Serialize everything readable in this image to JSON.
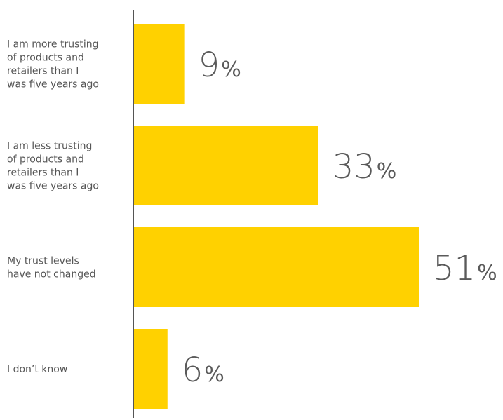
{
  "chart_data": {
    "type": "bar",
    "orientation": "horizontal",
    "categories": [
      [
        "I am more trusting",
        "of products and",
        "retailers than I",
        "was five years ago"
      ],
      [
        "I am less trusting",
        "of products and",
        "retailers than I",
        "was five years ago"
      ],
      [
        "My trust levels",
        "have not changed"
      ],
      [
        "I don’t know"
      ]
    ],
    "values": [
      9,
      33,
      51,
      6
    ],
    "value_labels": [
      "9",
      "33",
      "51",
      "6"
    ],
    "value_suffix": "%",
    "xlim": [
      0,
      60
    ],
    "grid": false,
    "legend": "none",
    "colors": {
      "bar": "#FFD100",
      "axis": "#555555",
      "text": "#555555"
    }
  }
}
